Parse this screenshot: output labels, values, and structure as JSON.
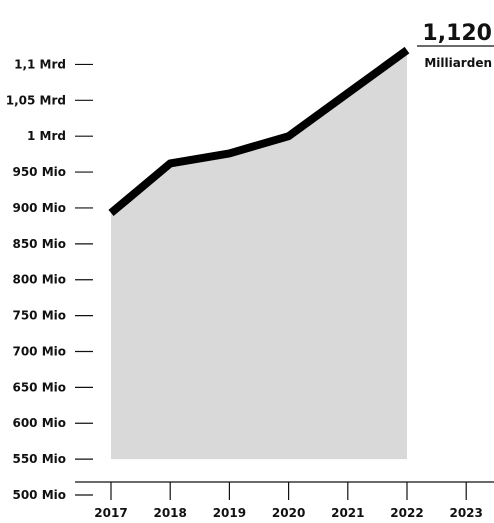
{
  "chart_data": {
    "type": "area",
    "title": "",
    "xlabel": "",
    "ylabel": "",
    "x": [
      "2017",
      "2018",
      "2019",
      "2020",
      "2021",
      "2022"
    ],
    "x_ticks": [
      "2017",
      "2018",
      "2019",
      "2020",
      "2021",
      "2022",
      "2023"
    ],
    "values": [
      893,
      962,
      976,
      1000,
      1060,
      1120
    ],
    "y_unit": "Mio",
    "ylim": [
      500,
      1125
    ],
    "area_baseline": 550,
    "y_ticks": [
      {
        "value": 500,
        "label": "500 Mio"
      },
      {
        "value": 550,
        "label": "550 Mio"
      },
      {
        "value": 600,
        "label": "600 Mio"
      },
      {
        "value": 650,
        "label": "650 Mio"
      },
      {
        "value": 700,
        "label": "700 Mio"
      },
      {
        "value": 750,
        "label": "750 Mio"
      },
      {
        "value": 800,
        "label": "800 Mio"
      },
      {
        "value": 850,
        "label": "850 Mio"
      },
      {
        "value": 900,
        "label": "900 Mio"
      },
      {
        "value": 950,
        "label": "950 Mio"
      },
      {
        "value": 1000,
        "label": "1 Mrd"
      },
      {
        "value": 1050,
        "label": "1,05 Mrd"
      },
      {
        "value": 1100,
        "label": "1,1 Mrd"
      }
    ],
    "callout": {
      "value": "1,120",
      "unit": "Milliarden"
    },
    "colors": {
      "line": "#000000",
      "area": "#d9d9d9",
      "axis": "#111111"
    },
    "grid": false,
    "legend": "none"
  }
}
